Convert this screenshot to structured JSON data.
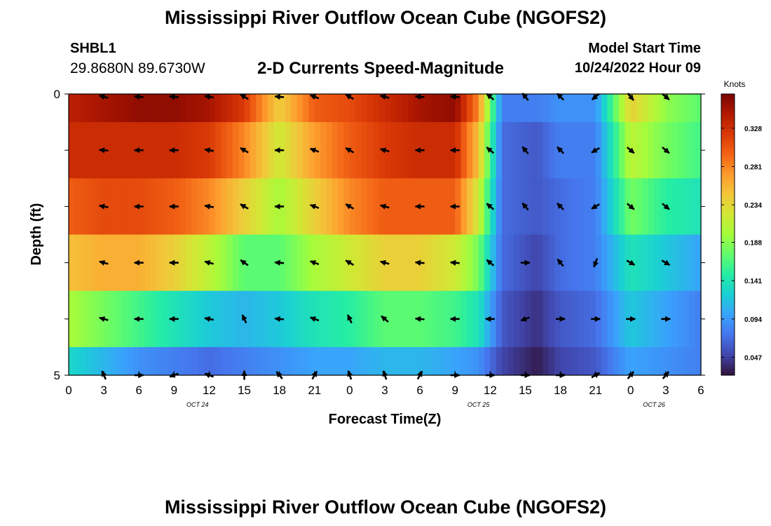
{
  "header": {
    "title": "Mississippi River Outflow Ocean Cube (NGOFS2)",
    "station": "SHBL1",
    "coords": "29.8680N  89.6730W",
    "subtitle": "2-D Currents Speed-Magnitude",
    "model_start_label": "Model Start Time",
    "model_start_value": "10/24/2022 Hour 09"
  },
  "footer": {
    "title": "Mississippi River Outflow Ocean Cube (NGOFS2)"
  },
  "chart_data": {
    "type": "heatmap",
    "xlabel": "Forecast Time(Z)",
    "ylabel": "Depth (ft)",
    "colorbar_label": "Knots",
    "x_tick_labels": [
      "0",
      "3",
      "6",
      "9",
      "12",
      "15",
      "18",
      "21",
      "0",
      "3",
      "6",
      "9",
      "12",
      "15",
      "18",
      "21",
      "0",
      "3",
      "6"
    ],
    "date_labels": [
      {
        "label": "OCT 24",
        "at_hour": 11
      },
      {
        "label": "OCT 25",
        "at_hour": 35
      },
      {
        "label": "OCT 26",
        "at_hour": 50
      }
    ],
    "x_range_hours": [
      0,
      54
    ],
    "y_range": [
      0,
      5
    ],
    "y_tick_labels": [
      "0",
      "5"
    ],
    "colorbar_ticks": [
      "0.047",
      "0.094",
      "0.141",
      "0.188",
      "0.234",
      "0.281",
      "0.328"
    ],
    "colorbar_range": [
      0.025,
      0.37
    ],
    "colormap": [
      "#30123b",
      "#4145ab",
      "#4675ed",
      "#39a2fc",
      "#1bcfd4",
      "#24eca6",
      "#61fc6c",
      "#a4fc3b",
      "#d1e834",
      "#f3c63a",
      "#fe9b2d",
      "#f36315",
      "#d93806",
      "#b11901",
      "#7a0402"
    ],
    "band_boundaries_ft": [
      0,
      0.5,
      1.5,
      2.5,
      3.5,
      4.5,
      5
    ],
    "speed_times_hours": [
      0,
      3,
      6,
      9,
      12,
      15,
      18,
      21,
      24,
      27,
      30,
      33,
      35,
      37,
      40,
      42,
      45,
      48,
      51,
      54
    ],
    "speed_bands": [
      [
        0.34,
        0.35,
        0.36,
        0.36,
        0.35,
        0.32,
        0.24,
        0.3,
        0.31,
        0.33,
        0.35,
        0.36,
        0.28,
        0.08,
        0.08,
        0.09,
        0.09,
        0.24,
        0.19,
        0.17
      ],
      [
        0.33,
        0.33,
        0.33,
        0.33,
        0.32,
        0.28,
        0.22,
        0.27,
        0.3,
        0.32,
        0.33,
        0.33,
        0.25,
        0.07,
        0.06,
        0.08,
        0.08,
        0.21,
        0.18,
        0.16
      ],
      [
        0.3,
        0.31,
        0.31,
        0.3,
        0.28,
        0.24,
        0.2,
        0.24,
        0.28,
        0.3,
        0.3,
        0.3,
        0.22,
        0.07,
        0.06,
        0.07,
        0.08,
        0.18,
        0.15,
        0.14
      ],
      [
        0.25,
        0.26,
        0.26,
        0.24,
        0.21,
        0.17,
        0.17,
        0.2,
        0.22,
        0.24,
        0.24,
        0.22,
        0.18,
        0.07,
        0.05,
        0.07,
        0.08,
        0.14,
        0.12,
        0.1
      ],
      [
        0.2,
        0.18,
        0.16,
        0.14,
        0.12,
        0.11,
        0.12,
        0.14,
        0.15,
        0.17,
        0.17,
        0.16,
        0.14,
        0.06,
        0.04,
        0.06,
        0.07,
        0.12,
        0.1,
        0.08
      ],
      [
        0.13,
        0.11,
        0.09,
        0.08,
        0.07,
        0.08,
        0.09,
        0.1,
        0.1,
        0.11,
        0.11,
        0.1,
        0.09,
        0.05,
        0.03,
        0.05,
        0.06,
        0.1,
        0.09,
        0.08
      ]
    ],
    "arrow_times_hours": [
      3,
      6,
      9,
      12,
      15,
      18,
      21,
      24,
      27,
      30,
      33,
      36,
      39,
      42,
      45,
      48,
      51
    ],
    "arrow_depths_ft": [
      0,
      1,
      2,
      3,
      4,
      5
    ],
    "arrow_directions_deg": [
      [
        165,
        175,
        175,
        170,
        150,
        175,
        160,
        150,
        165,
        175,
        175,
        140,
        130,
        135,
        220,
        310,
        320
      ],
      [
        175,
        180,
        180,
        170,
        150,
        180,
        160,
        150,
        165,
        180,
        180,
        140,
        130,
        135,
        210,
        320,
        320
      ],
      [
        170,
        180,
        180,
        170,
        150,
        180,
        160,
        150,
        165,
        180,
        180,
        140,
        130,
        135,
        210,
        320,
        320
      ],
      [
        165,
        180,
        180,
        165,
        145,
        175,
        160,
        150,
        165,
        175,
        175,
        140,
        0,
        130,
        250,
        330,
        330
      ],
      [
        165,
        180,
        180,
        170,
        115,
        175,
        160,
        115,
        140,
        175,
        180,
        180,
        200,
        0,
        0,
        0,
        0
      ],
      [
        115,
        0,
        200,
        160,
        90,
        130,
        60,
        110,
        110,
        60,
        0,
        0,
        0,
        0,
        30,
        50,
        50
      ]
    ]
  }
}
